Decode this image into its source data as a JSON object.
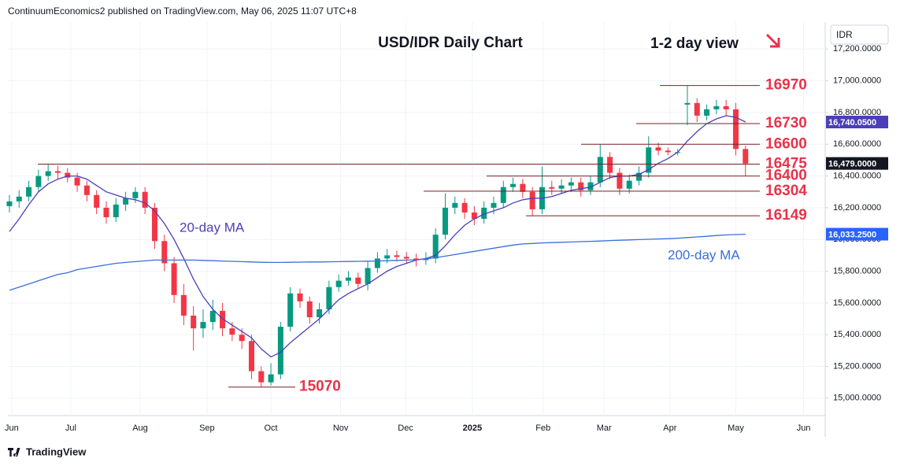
{
  "header": "ContinuumEconomics2 published on TradingView.com, May 06, 2025 11:07 UTC+8",
  "footer": "TradingView",
  "chart_data": {
    "type": "candlestick",
    "title": "USD/IDR Daily Chart",
    "subtitle": "1-2 day view",
    "currency": "IDR",
    "up_color": "#089981",
    "down_color": "#f23645",
    "xlim": [
      -0.16,
      84.23
    ],
    "xticks": [
      {
        "value": 0.24,
        "label": "Jun"
      },
      {
        "value": 6.34,
        "label": "Jul"
      },
      {
        "value": 13.5,
        "label": "Aug"
      },
      {
        "value": 20.4,
        "label": "Sep"
      },
      {
        "value": 27,
        "label": "Oct"
      },
      {
        "value": 34.2,
        "label": "Nov"
      },
      {
        "value": 40.9,
        "label": "Dec"
      },
      {
        "value": 47.8,
        "label": "2025"
      },
      {
        "value": 55.1,
        "label": "Feb"
      },
      {
        "value": 61.4,
        "label": "Mar"
      },
      {
        "value": 68.2,
        "label": "Apr"
      },
      {
        "value": 75,
        "label": "May"
      },
      {
        "value": 82,
        "label": "Jun"
      }
    ],
    "ylim": [
      14890,
      17370
    ],
    "yticks": [
      {
        "value": 15000,
        "label": "15,000.0000"
      },
      {
        "value": 15200,
        "label": "15,200.0000"
      },
      {
        "value": 15400,
        "label": "15,400.0000"
      },
      {
        "value": 15600,
        "label": "15,600.0000"
      },
      {
        "value": 15800,
        "label": "15,800.0000"
      },
      {
        "value": 16000,
        "label": "16,000.0000"
      },
      {
        "value": 16200,
        "label": "16,200.0000"
      },
      {
        "value": 16400,
        "label": "16,400.0000"
      },
      {
        "value": 16600,
        "label": "16,600.0000"
      },
      {
        "value": 16800,
        "label": "16,800.0000"
      },
      {
        "value": 17000,
        "label": "17,000.0000"
      },
      {
        "value": 17200,
        "label": "17,200.0000"
      }
    ],
    "grid": true,
    "open": [
      16210,
      16240,
      16270,
      16330,
      16400,
      16430,
      16420,
      16390,
      16340,
      16280,
      16200,
      16140,
      16220,
      16260,
      16300,
      16200,
      15990,
      15850,
      15650,
      15520,
      15440,
      15480,
      15550,
      15440,
      15400,
      15360,
      15170,
      15100,
      15150,
      15450,
      15660,
      15610,
      15510,
      15560,
      15700,
      15740,
      15760,
      15720,
      15820,
      15880,
      15900,
      15890,
      15880,
      15870,
      15880,
      16030,
      16200,
      16230,
      16170,
      16130,
      16200,
      16230,
      16330,
      16350,
      16300,
      16190,
      16330,
      16320,
      16340,
      16360,
      16310,
      16360,
      16520,
      16420,
      16320,
      16370,
      16420,
      16580,
      16560,
      16550,
      16850,
      16860,
      16780,
      16820,
      16840,
      16820,
      16570
    ],
    "high": [
      16280,
      16310,
      16370,
      16440,
      16475,
      16465,
      16450,
      16420,
      16370,
      16310,
      16240,
      16260,
      16300,
      16330,
      16330,
      16230,
      16030,
      15890,
      15720,
      15580,
      15560,
      15620,
      15600,
      15480,
      15440,
      15400,
      15200,
      15220,
      15480,
      15700,
      15690,
      15640,
      15600,
      15740,
      15780,
      15800,
      15790,
      15860,
      15920,
      15940,
      15930,
      15920,
      15910,
      15920,
      16070,
      16290,
      16270,
      16260,
      16210,
      16240,
      16270,
      16370,
      16390,
      16380,
      16330,
      16460,
      16370,
      16380,
      16390,
      16390,
      16400,
      16600,
      16550,
      16450,
      16410,
      16460,
      16650,
      16610,
      16580,
      16570,
      16970,
      16890,
      16850,
      16880,
      16880,
      16860,
      16590
    ],
    "low": [
      16170,
      16200,
      16240,
      16300,
      16370,
      16380,
      16360,
      16300,
      16240,
      16160,
      16100,
      16110,
      16180,
      16230,
      16160,
      15940,
      15800,
      15600,
      15460,
      15300,
      15380,
      15430,
      15390,
      15360,
      15310,
      15120,
      15070,
      15080,
      15120,
      15420,
      15570,
      15470,
      15470,
      15530,
      15670,
      15710,
      15690,
      15680,
      15790,
      15850,
      15860,
      15850,
      15830,
      15840,
      15850,
      16000,
      16160,
      16130,
      16090,
      16100,
      16160,
      16200,
      16300,
      16260,
      16149,
      16160,
      16280,
      16290,
      16300,
      16270,
      16280,
      16330,
      16380,
      16280,
      16290,
      16340,
      16390,
      16530,
      16530,
      16530,
      16720,
      16740,
      16750,
      16790,
      16780,
      16530,
      16400
    ],
    "close": [
      16240,
      16270,
      16330,
      16400,
      16430,
      16420,
      16390,
      16340,
      16280,
      16200,
      16140,
      16220,
      16260,
      16300,
      16200,
      15990,
      15850,
      15650,
      15520,
      15440,
      15480,
      15550,
      15440,
      15400,
      15360,
      15170,
      15100,
      15150,
      15450,
      15660,
      15610,
      15510,
      15560,
      15700,
      15740,
      15760,
      15720,
      15820,
      15880,
      15900,
      15890,
      15880,
      15870,
      15880,
      16030,
      16200,
      16230,
      16170,
      16130,
      16200,
      16230,
      16330,
      16350,
      16300,
      16190,
      16330,
      16320,
      16340,
      16360,
      16310,
      16360,
      16520,
      16420,
      16320,
      16370,
      16420,
      16580,
      16560,
      16550,
      16550,
      16860,
      16780,
      16820,
      16840,
      16820,
      16570,
      16479
    ],
    "close_last_label": "16,479.0000",
    "series": [
      {
        "name": "20-day MA",
        "color": "#4b3fb8",
        "last_label": "16,740.0500",
        "values": [
          16050,
          16130,
          16220,
          16300,
          16350,
          16380,
          16400,
          16400,
          16380,
          16340,
          16300,
          16280,
          16260,
          16250,
          16230,
          16180,
          16100,
          16000,
          15880,
          15750,
          15640,
          15560,
          15500,
          15460,
          15420,
          15380,
          15310,
          15260,
          15290,
          15350,
          15400,
          15450,
          15500,
          15560,
          15620,
          15660,
          15690,
          15720,
          15760,
          15800,
          15830,
          15850,
          15870,
          15880,
          15900,
          15960,
          16030,
          16090,
          16130,
          16160,
          16180,
          16200,
          16230,
          16250,
          16260,
          16260,
          16270,
          16290,
          16310,
          16320,
          16330,
          16360,
          16390,
          16400,
          16400,
          16410,
          16440,
          16480,
          16510,
          16550,
          16620,
          16680,
          16730,
          16760,
          16780,
          16770,
          16740.05
        ]
      },
      {
        "name": "200-day MA",
        "color": "#3a6fd8",
        "last_label": "16,033.2500",
        "values": [
          15680,
          15700,
          15720,
          15740,
          15760,
          15780,
          15790,
          15810,
          15820,
          15830,
          15840,
          15850,
          15855,
          15860,
          15865,
          15870,
          15870,
          15870,
          15870,
          15870,
          15868,
          15866,
          15864,
          15862,
          15860,
          15858,
          15856,
          15855,
          15855,
          15856,
          15857,
          15858,
          15858,
          15859,
          15860,
          15861,
          15862,
          15863,
          15864,
          15866,
          15868,
          15870,
          15872,
          15878,
          15885,
          15895,
          15905,
          15915,
          15925,
          15935,
          15945,
          15955,
          15965,
          15972,
          15975,
          15978,
          15980,
          15982,
          15984,
          15986,
          15988,
          15990,
          15993,
          15995,
          15997,
          15999,
          16001,
          16003,
          16005,
          16008,
          16012,
          16016,
          16020,
          16025,
          16029,
          16031,
          16033.25
        ]
      }
    ],
    "levels": [
      16970,
      16730,
      16600,
      16475,
      16400,
      16304,
      16149,
      15070
    ],
    "level_color": "#e8334a"
  }
}
